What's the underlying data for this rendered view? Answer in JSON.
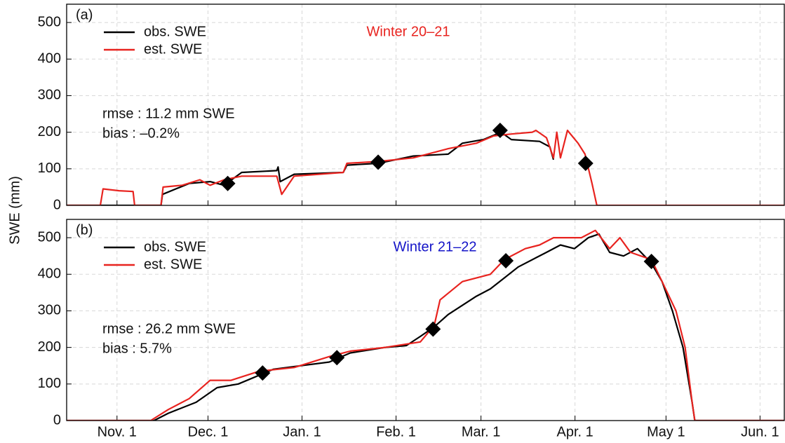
{
  "chart_data": [
    {
      "type": "line",
      "panel_label": "(a)",
      "annotation": "Winter 20–21",
      "annotation_color": "#e8231f",
      "stats": [
        "rmse : 11.2 mm SWE",
        "bias : –0.2%"
      ],
      "ylabel": "SWE (mm)",
      "series": [
        {
          "name": "obs. SWE",
          "color": "#000000",
          "x": [
            -17,
            14.5,
            15.0,
            23.8,
            30.7,
            35.3,
            41.1,
            52.7,
            53.1,
            53.8,
            58.4,
            74.6,
            75.8,
            86.1,
            97.7,
            109.2,
            113.9,
            120.8,
            126.6,
            130.0,
            139.3,
            142.7,
            143.9
          ],
          "values": [
            0,
            0,
            30,
            60,
            65,
            55,
            90,
            95,
            105,
            65,
            85,
            90,
            110,
            115,
            135,
            140,
            170,
            180,
            200,
            180,
            175,
            160,
            125
          ]
        },
        {
          "name": "est. SWE",
          "color": "#e8231f",
          "x": [
            -17,
            -5.5,
            -4.6,
            0.7,
            5.3,
            5.8,
            14.5,
            15.2,
            21.5,
            27.3,
            30.7,
            35.3,
            41.1,
            52.7,
            54.3,
            58.4,
            74.6,
            75.8,
            86.1,
            97.7,
            109.2,
            118.5,
            124.2,
            130.0,
            136.9,
            138.1,
            141.6,
            143.9,
            145.0,
            146.2,
            148.5,
            152.0,
            154.3,
            156.6,
            158.2,
            220
          ],
          "values": [
            0,
            0,
            45,
            40,
            38,
            0,
            0,
            50,
            55,
            70,
            55,
            70,
            80,
            80,
            30,
            80,
            90,
            115,
            120,
            130,
            155,
            170,
            190,
            195,
            200,
            205,
            185,
            130,
            200,
            130,
            205,
            170,
            140,
            60,
            0,
            0
          ]
        }
      ],
      "markers": {
        "x": [
          36.5,
          86.1,
          126.3,
          154.5
        ],
        "values": [
          60,
          118,
          205,
          115
        ]
      },
      "xlim": [
        -16.6,
        220
      ],
      "ylim": [
        0,
        550
      ],
      "xticks": [
        0,
        30,
        61,
        92,
        120,
        151,
        181,
        212
      ],
      "yticks": [
        0,
        100,
        200,
        300,
        400,
        500
      ],
      "grid": true
    },
    {
      "type": "line",
      "panel_label": "(b)",
      "annotation": "Winter 21–22",
      "annotation_color": "#1414c8",
      "stats": [
        "rmse : 26.2 mm SWE",
        "bias : 5.7%"
      ],
      "series": [
        {
          "name": "obs. SWE",
          "color": "#000000",
          "x": [
            -17,
            12.2,
            16.9,
            26.1,
            33.0,
            40.0,
            51.5,
            60.7,
            70.0,
            76.9,
            88.5,
            95.4,
            100.0,
            103.5,
            105.8,
            109.2,
            118.5,
            123.1,
            127.7,
            132.3,
            141.6,
            146.2,
            150.8,
            155.4,
            158.9,
            162.4,
            167.0,
            171.6,
            176.2,
            179.7,
            183.1,
            186.6,
            189.6,
            190.5,
            220
          ],
          "values": [
            0,
            0,
            20,
            50,
            90,
            100,
            140,
            150,
            160,
            185,
            200,
            205,
            230,
            250,
            265,
            290,
            340,
            360,
            390,
            420,
            460,
            480,
            470,
            500,
            510,
            460,
            450,
            470,
            430,
            380,
            300,
            200,
            50,
            0,
            0
          ]
        },
        {
          "name": "est. SWE",
          "color": "#e8231f",
          "x": [
            -17,
            11.1,
            16.9,
            23.8,
            30.7,
            37.6,
            46.9,
            58.4,
            70.0,
            76.9,
            88.5,
            100.0,
            104.6,
            106.5,
            113.9,
            123.1,
            127.7,
            134.6,
            139.3,
            143.9,
            153.1,
            157.7,
            162.4,
            165.8,
            169.3,
            176.2,
            179.7,
            184.3,
            187.3,
            189.6,
            190.5,
            220
          ],
          "values": [
            0,
            0,
            30,
            60,
            110,
            110,
            135,
            145,
            175,
            190,
            200,
            215,
            260,
            330,
            380,
            400,
            440,
            470,
            480,
            500,
            500,
            520,
            470,
            500,
            460,
            440,
            380,
            300,
            200,
            50,
            0,
            0
          ]
        }
      ],
      "markers": {
        "x": [
          48.0,
          72.5,
          104.2,
          128.2,
          176.2
        ],
        "values": [
          130,
          172,
          250,
          437,
          435
        ]
      },
      "xlim": [
        -16.6,
        220
      ],
      "ylim": [
        0,
        550
      ],
      "xticks": [
        {
          "value": 0,
          "label": "Nov. 1"
        },
        {
          "value": 30,
          "label": "Dec. 1"
        },
        {
          "value": 61,
          "label": "Jan. 1"
        },
        {
          "value": 92,
          "label": "Feb. 1"
        },
        {
          "value": 120,
          "label": "Mar. 1"
        },
        {
          "value": 151,
          "label": "Apr. 1"
        },
        {
          "value": 181,
          "label": "May 1"
        },
        {
          "value": 212,
          "label": "Jun. 1"
        }
      ],
      "yticks": [
        0,
        100,
        200,
        300,
        400,
        500
      ],
      "grid": true
    }
  ]
}
